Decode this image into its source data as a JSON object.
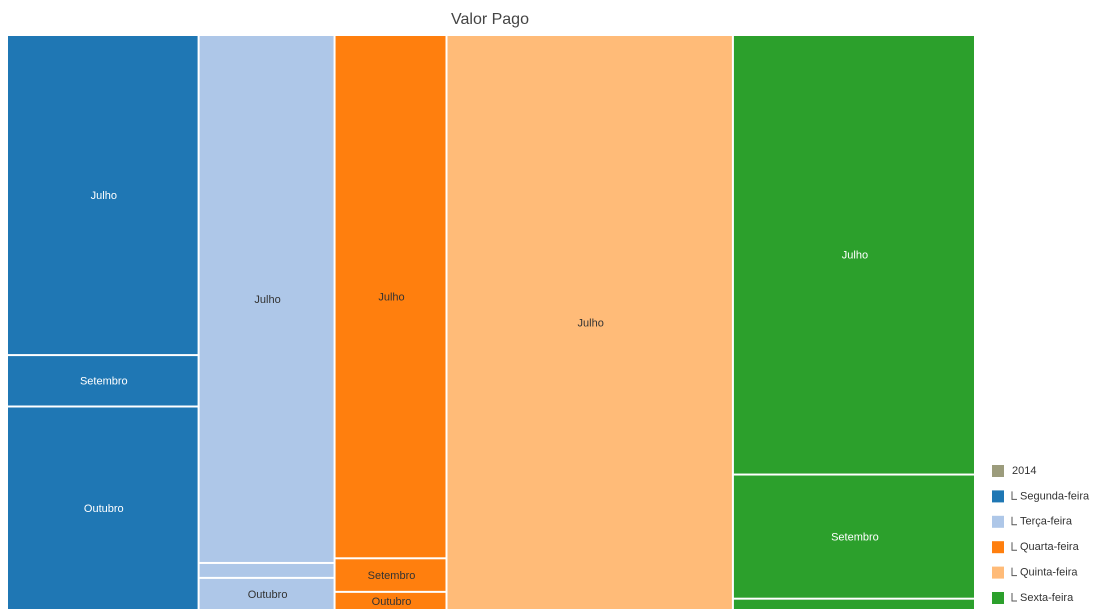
{
  "chart_data": {
    "type": "treemap",
    "title": "Valor Pago",
    "root": "2014",
    "root_color": "#9c9c7c",
    "series": [
      {
        "name": "Segunda-feira",
        "color": "#1f77b4",
        "label_color": "#ffffff",
        "categories": [
          "Julho",
          "Setembro",
          "Outubro"
        ],
        "values": [
          604,
          97,
          384
        ]
      },
      {
        "name": "Terça-feira",
        "color": "#aec7e8",
        "label_color": "#333333",
        "categories": [
          "Julho",
          null,
          "Outubro"
        ],
        "values": [
          707,
          20,
          43
        ]
      },
      {
        "name": "Quarta-feira",
        "color": "#ff7f0e",
        "label_color": "#333333",
        "categories": [
          "Julho",
          "Setembro",
          "Outubro"
        ],
        "values": [
          577,
          37,
          20
        ]
      },
      {
        "name": "Quinta-feira",
        "color": "#ffbb78",
        "label_color": "#333333",
        "categories": [
          "Julho"
        ],
        "values": [
          1622
        ]
      },
      {
        "name": "Sexta-feira",
        "color": "#2ca02c",
        "label_color": "#ffffff",
        "categories": [
          "Julho",
          "Setembro",
          null
        ],
        "values": [
          1048,
          296,
          27
        ]
      }
    ]
  }
}
